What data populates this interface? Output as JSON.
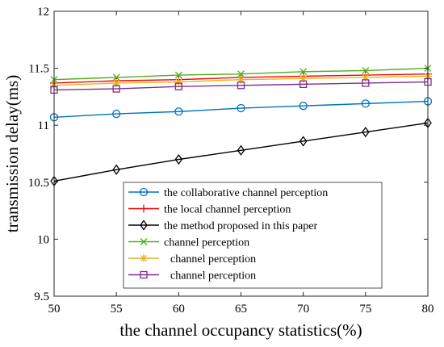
{
  "chart_data": {
    "type": "line",
    "title": "",
    "xlabel": "the channel occupancy statistics(%)",
    "ylabel": "transmission delay(ms)",
    "x": [
      50,
      55,
      60,
      65,
      70,
      75,
      80
    ],
    "xlim": [
      50,
      80
    ],
    "ylim": [
      9.5,
      12
    ],
    "xticks": [
      "50",
      "55",
      "60",
      "65",
      "70",
      "75",
      "80"
    ],
    "yticks": [
      "9.5",
      "10",
      "10.5",
      "11",
      "11.5",
      "12"
    ],
    "grid": false,
    "legend_position": "lower-right",
    "series": [
      {
        "name": "the collaborative channel perception",
        "color": "#0072BD",
        "marker": "circle",
        "values": [
          11.07,
          11.1,
          11.12,
          11.15,
          11.17,
          11.19,
          11.21
        ]
      },
      {
        "name": "the local channel perception",
        "color": "#FF0000",
        "marker": "plus",
        "values": [
          11.37,
          11.39,
          11.4,
          11.42,
          11.43,
          11.44,
          11.45
        ]
      },
      {
        "name": "the method proposed in this paper",
        "color": "#000000",
        "marker": "diamond",
        "values": [
          10.51,
          10.61,
          10.7,
          10.78,
          10.86,
          10.94,
          11.02
        ]
      },
      {
        "name": "channel perception",
        "color": "#4DB01A",
        "marker": "x",
        "values": [
          11.4,
          11.42,
          11.44,
          11.45,
          11.47,
          11.48,
          11.5
        ]
      },
      {
        "name": "channel perception",
        "color": "#EDB120",
        "marker": "asterisk",
        "values": [
          11.35,
          11.37,
          11.38,
          11.4,
          11.41,
          11.42,
          11.43
        ]
      },
      {
        "name": "channel perception",
        "color": "#7E2F8E",
        "marker": "square",
        "values": [
          11.31,
          11.32,
          11.34,
          11.35,
          11.36,
          11.37,
          11.38
        ]
      }
    ]
  }
}
